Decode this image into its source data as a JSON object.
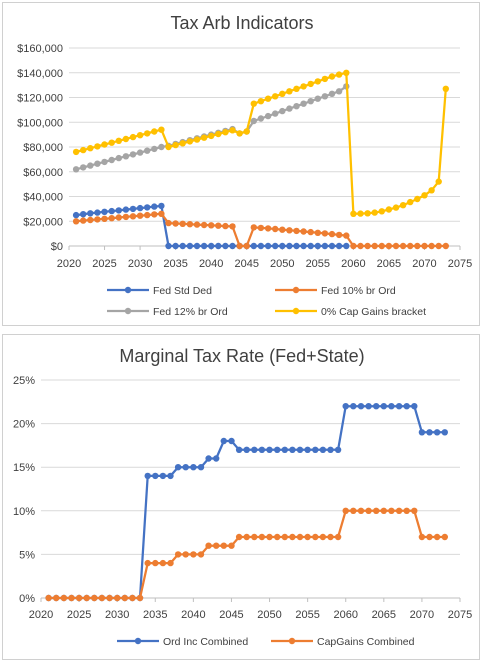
{
  "chart_data": [
    {
      "type": "line",
      "title": "Tax Arb Indicators",
      "xlabel": "",
      "ylabel": "",
      "xlim": [
        2020,
        2075
      ],
      "ylim": [
        0,
        160000
      ],
      "x_ticks": [
        2020,
        2025,
        2030,
        2035,
        2040,
        2045,
        2050,
        2055,
        2060,
        2065,
        2070,
        2075
      ],
      "x_tick_labels": [
        "2020",
        "2025",
        "2030",
        "2035",
        "2040",
        "2045",
        "2050",
        "2055",
        "2060",
        "2065",
        "2070",
        "2075"
      ],
      "y_ticks": [
        0,
        20000,
        40000,
        60000,
        80000,
        100000,
        120000,
        140000,
        160000
      ],
      "y_tick_labels": [
        "$0",
        "$20,000",
        "$40,000",
        "$60,000",
        "$80,000",
        "$100,000",
        "$120,000",
        "$140,000",
        "$160,000"
      ],
      "grid": true,
      "legend_position": "bottom",
      "x": [
        2021,
        2022,
        2023,
        2024,
        2025,
        2026,
        2027,
        2028,
        2029,
        2030,
        2031,
        2032,
        2033,
        2034,
        2035,
        2036,
        2037,
        2038,
        2039,
        2040,
        2041,
        2042,
        2043,
        2044,
        2045,
        2046,
        2047,
        2048,
        2049,
        2050,
        2051,
        2052,
        2053,
        2054,
        2055,
        2056,
        2057,
        2058,
        2059,
        2060,
        2061,
        2062,
        2063,
        2064,
        2065,
        2066,
        2067,
        2068,
        2069,
        2070,
        2071,
        2072,
        2073
      ],
      "series": [
        {
          "name": "Fed Std Ded",
          "color": "#4472C4",
          "values": [
            25000,
            25700,
            26400,
            27000,
            27600,
            28200,
            28800,
            29400,
            30000,
            30600,
            31200,
            31800,
            32400,
            0,
            0,
            0,
            0,
            0,
            0,
            0,
            0,
            0,
            0,
            0,
            0,
            0,
            0,
            0,
            0,
            0,
            0,
            0,
            0,
            0,
            0,
            0,
            0,
            0,
            0,
            null,
            null,
            null,
            null,
            null,
            null,
            null,
            null,
            null,
            null,
            null,
            null,
            null,
            null
          ]
        },
        {
          "name": "Fed 10% br Ord",
          "color": "#ED7D31",
          "values": [
            20000,
            20500,
            21000,
            21500,
            22000,
            22500,
            23000,
            23500,
            24000,
            24500,
            25000,
            25500,
            26000,
            18500,
            18200,
            17900,
            17600,
            17300,
            17000,
            16700,
            16400,
            16100,
            15800,
            0,
            0,
            15000,
            14600,
            14200,
            13700,
            13200,
            12700,
            12200,
            11700,
            11200,
            10700,
            10200,
            9600,
            9000,
            8400,
            0,
            0,
            0,
            0,
            0,
            0,
            0,
            0,
            0,
            0,
            0,
            0,
            0,
            0
          ]
        },
        {
          "name": "Fed 12% br Ord",
          "color": "#A5A5A5",
          "values": [
            62000,
            63500,
            65000,
            66500,
            68000,
            69500,
            71000,
            72500,
            74000,
            75500,
            77000,
            78500,
            80000,
            81000,
            82500,
            84000,
            85500,
            87000,
            88500,
            90000,
            91500,
            93000,
            94500,
            91000,
            92500,
            101000,
            103000,
            105000,
            107000,
            109000,
            111000,
            113000,
            115000,
            117000,
            119000,
            121000,
            123000,
            125000,
            129000,
            null,
            null,
            null,
            null,
            null,
            null,
            null,
            null,
            null,
            null,
            null,
            null,
            null,
            null
          ]
        },
        {
          "name": "0% Cap Gains bracket",
          "color": "#FFC000",
          "values": [
            76000,
            77500,
            79000,
            80500,
            82000,
            83500,
            85000,
            86500,
            88000,
            89500,
            91000,
            92500,
            94000,
            80000,
            81500,
            83000,
            84500,
            86000,
            87500,
            89000,
            90500,
            92000,
            93500,
            91000,
            92500,
            115000,
            117000,
            119000,
            121000,
            123000,
            125000,
            127000,
            129000,
            131000,
            133000,
            135000,
            137000,
            138500,
            140000,
            26000,
            26200,
            26400,
            27000,
            28000,
            29500,
            31000,
            33000,
            35500,
            38000,
            41000,
            45000,
            52000,
            127000
          ]
        }
      ]
    },
    {
      "type": "line",
      "title": "Marginal Tax Rate (Fed+State)",
      "xlabel": "",
      "ylabel": "",
      "xlim": [
        2020,
        2075
      ],
      "ylim": [
        0,
        0.25
      ],
      "x_ticks": [
        2020,
        2025,
        2030,
        2035,
        2040,
        2045,
        2050,
        2055,
        2060,
        2065,
        2070,
        2075
      ],
      "x_tick_labels": [
        "2020",
        "2025",
        "2030",
        "2035",
        "2040",
        "2045",
        "2050",
        "2055",
        "2060",
        "2065",
        "2070",
        "2075"
      ],
      "y_ticks": [
        0,
        0.05,
        0.1,
        0.15,
        0.2,
        0.25
      ],
      "y_tick_labels": [
        "0%",
        "5%",
        "10%",
        "15%",
        "20%",
        "25%"
      ],
      "grid": true,
      "legend_position": "bottom",
      "x": [
        2021,
        2022,
        2023,
        2024,
        2025,
        2026,
        2027,
        2028,
        2029,
        2030,
        2031,
        2032,
        2033,
        2034,
        2035,
        2036,
        2037,
        2038,
        2039,
        2040,
        2041,
        2042,
        2043,
        2044,
        2045,
        2046,
        2047,
        2048,
        2049,
        2050,
        2051,
        2052,
        2053,
        2054,
        2055,
        2056,
        2057,
        2058,
        2059,
        2060,
        2061,
        2062,
        2063,
        2064,
        2065,
        2066,
        2067,
        2068,
        2069,
        2070,
        2071,
        2072,
        2073
      ],
      "series": [
        {
          "name": "Ord Inc Combined",
          "color": "#4472C4",
          "values": [
            0,
            0,
            0,
            0,
            0,
            0,
            0,
            0,
            0,
            0,
            0,
            0,
            0,
            0.14,
            0.14,
            0.14,
            0.14,
            0.15,
            0.15,
            0.15,
            0.15,
            0.16,
            0.16,
            0.18,
            0.18,
            0.17,
            0.17,
            0.17,
            0.17,
            0.17,
            0.17,
            0.17,
            0.17,
            0.17,
            0.17,
            0.17,
            0.17,
            0.17,
            0.17,
            0.22,
            0.22,
            0.22,
            0.22,
            0.22,
            0.22,
            0.22,
            0.22,
            0.22,
            0.22,
            0.19,
            0.19,
            0.19,
            0.19
          ]
        },
        {
          "name": "CapGains Combined",
          "color": "#ED7D31",
          "values": [
            0,
            0,
            0,
            0,
            0,
            0,
            0,
            0,
            0,
            0,
            0,
            0,
            0,
            0.04,
            0.04,
            0.04,
            0.04,
            0.05,
            0.05,
            0.05,
            0.05,
            0.06,
            0.06,
            0.06,
            0.06,
            0.07,
            0.07,
            0.07,
            0.07,
            0.07,
            0.07,
            0.07,
            0.07,
            0.07,
            0.07,
            0.07,
            0.07,
            0.07,
            0.07,
            0.1,
            0.1,
            0.1,
            0.1,
            0.1,
            0.1,
            0.1,
            0.1,
            0.1,
            0.1,
            0.07,
            0.07,
            0.07,
            0.07
          ]
        }
      ]
    }
  ]
}
